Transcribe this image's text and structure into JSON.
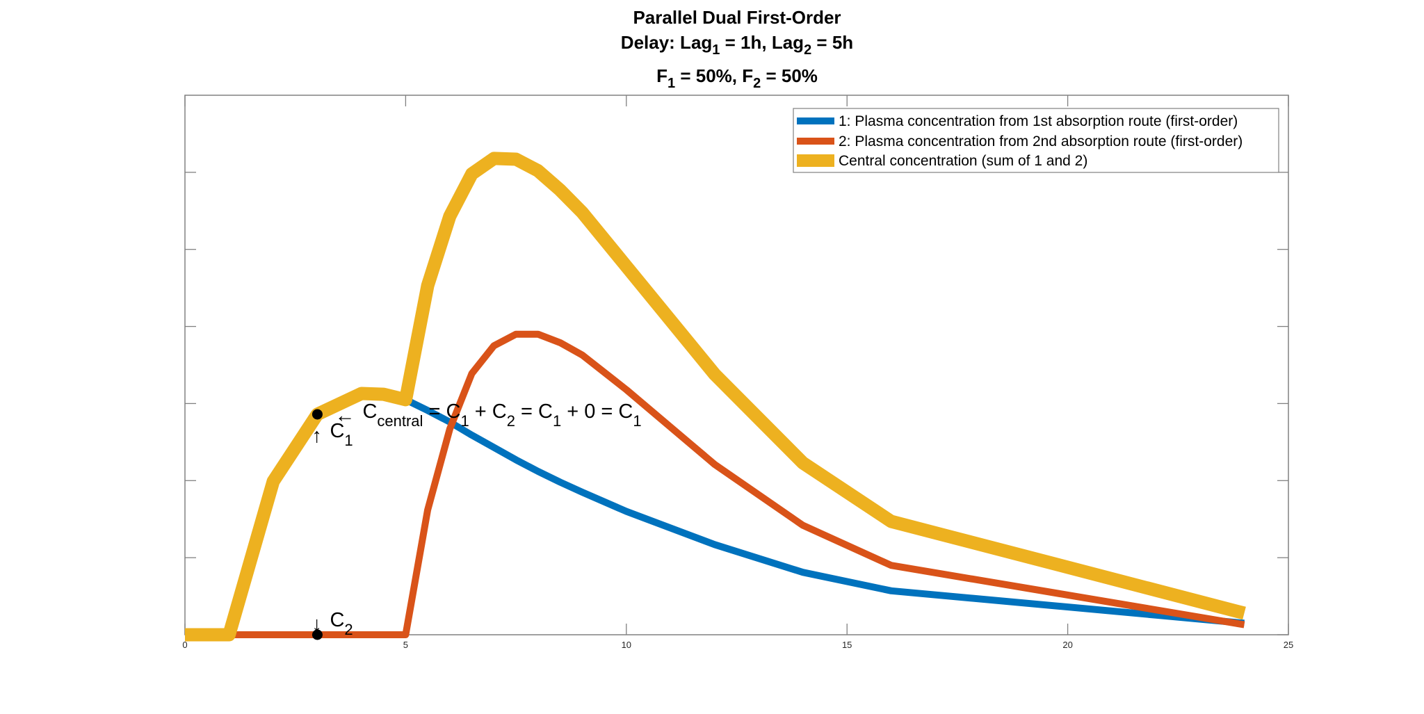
{
  "chart_data": {
    "type": "line",
    "title": {
      "line1": "Parallel Dual First-Order",
      "line2": [
        {
          "text": "Delay: Lag",
          "sub": false
        },
        {
          "text": "1",
          "sub": true
        },
        {
          "text": " = 1h, Lag",
          "sub": false
        },
        {
          "text": "2",
          "sub": true
        },
        {
          "text": " = 5h",
          "sub": false
        }
      ],
      "line3": [
        {
          "text": "F",
          "sub": false
        },
        {
          "text": "1",
          "sub": true
        },
        {
          "text": " = 50%, F",
          "sub": false
        },
        {
          "text": "2",
          "sub": true
        },
        {
          "text": " = 50%",
          "sub": false
        }
      ]
    },
    "xlabel": "",
    "ylabel": "",
    "xlim": [
      0,
      25
    ],
    "ylim": [
      0,
      7
    ],
    "xticks": [
      0,
      5,
      10,
      15,
      20,
      25
    ],
    "xtick_labels": [
      "0",
      "5",
      "10",
      "15",
      "20",
      "25"
    ],
    "yticks": [
      0,
      1,
      2,
      3,
      4,
      5,
      6
    ],
    "ytick_labels_visible": false,
    "grid": false,
    "box": true,
    "legend_position": "top-right",
    "x": [
      0,
      1,
      2,
      3,
      4,
      4.5,
      5,
      5.5,
      6,
      6.5,
      7,
      7.5,
      8,
      8.5,
      9,
      10,
      12,
      14,
      16,
      24
    ],
    "series": [
      {
        "name": "1: Plasma concentration from 1st absorption route (first-order)",
        "color": "#0072BD",
        "weight": "medium",
        "values": [
          0,
          0,
          1.99,
          2.86,
          3.13,
          3.12,
          3.05,
          2.91,
          2.76,
          2.59,
          2.43,
          2.27,
          2.12,
          1.98,
          1.85,
          1.6,
          1.17,
          0.81,
          0.57,
          0.15
        ]
      },
      {
        "name": "2: Plasma concentration from 2nd absorption route (first-order)",
        "color": "#D95319",
        "weight": "medium",
        "values": [
          0,
          0,
          0,
          0,
          0,
          0,
          0,
          1.62,
          2.67,
          3.39,
          3.75,
          3.9,
          3.9,
          3.79,
          3.63,
          3.18,
          2.21,
          1.42,
          0.9,
          0.13
        ]
      },
      {
        "name": "Central concentration (sum of 1 and 2)",
        "color": "#EDB120",
        "weight": "thick",
        "values": [
          0,
          0,
          1.99,
          2.86,
          3.13,
          3.12,
          3.05,
          4.53,
          5.43,
          5.98,
          6.18,
          6.17,
          6.02,
          5.77,
          5.48,
          4.78,
          3.38,
          2.23,
          1.47,
          0.28
        ]
      }
    ],
    "annotations": {
      "marker_c1": {
        "x": 3,
        "y": 2.86
      },
      "marker_c2": {
        "x": 3,
        "y": 0
      },
      "c1_label": {
        "base": "C",
        "sub": "1"
      },
      "c2_label": {
        "base": "C",
        "sub": "2"
      },
      "equation": [
        {
          "text": "C",
          "sub": false
        },
        {
          "text": "central",
          "sub": true
        },
        {
          "text": " = C",
          "sub": false
        },
        {
          "text": "1",
          "sub": true
        },
        {
          "text": " + C",
          "sub": false
        },
        {
          "text": "2",
          "sub": true
        },
        {
          "text": " = C",
          "sub": false
        },
        {
          "text": "1",
          "sub": true
        },
        {
          "text": " + 0 = C",
          "sub": false
        },
        {
          "text": "1",
          "sub": true
        }
      ],
      "arrow_glyph_left": "←",
      "arrow_glyph_up": "↑",
      "arrow_glyph_down": "↓"
    }
  }
}
